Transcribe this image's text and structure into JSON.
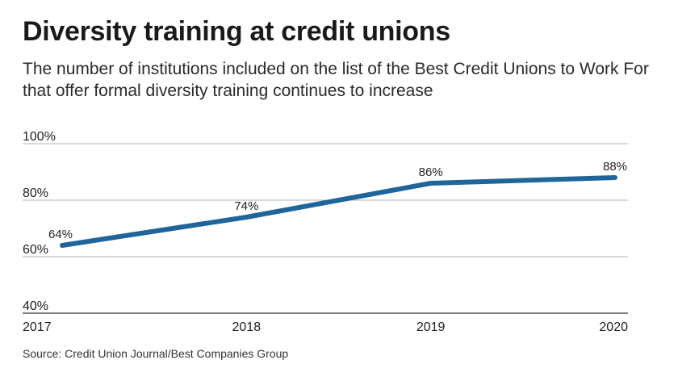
{
  "colors": {
    "line": "#20659a",
    "grid": "#9a9a9a",
    "text": "#222222"
  },
  "chart_data": {
    "type": "line",
    "title": "Diversity training at credit unions",
    "subtitle": "The number of institutions included on the list of the Best Credit Unions to Work For that offer formal diversity training continues to increase",
    "source": "Source: Credit Union Journal/Best Companies Group",
    "x": [
      "2017",
      "2018",
      "2019",
      "2020"
    ],
    "series": [
      {
        "values": [
          64,
          74,
          86,
          88
        ],
        "labels": [
          "64%",
          "74%",
          "86%",
          "88%"
        ]
      }
    ],
    "ylim": [
      40,
      100
    ],
    "yticks": [
      40,
      60,
      80,
      100
    ],
    "ytick_labels": [
      "40%",
      "60%",
      "80%",
      "100%"
    ],
    "grid": true,
    "legend": "none"
  }
}
